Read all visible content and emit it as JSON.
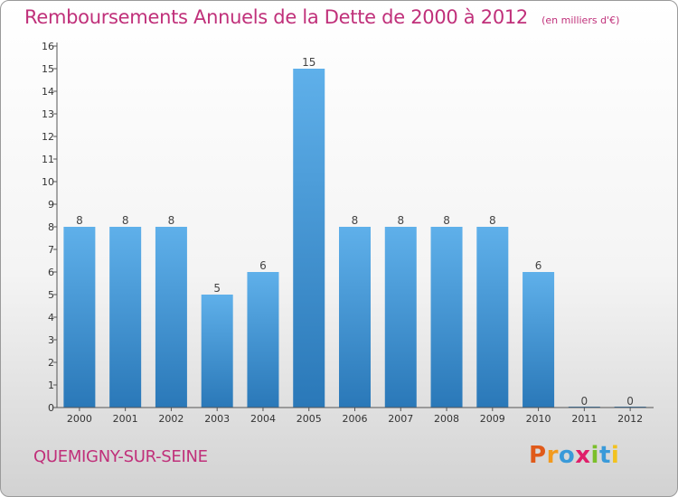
{
  "header": {
    "title": "Remboursements Annuels de la Dette de 2000 à 2012",
    "subtitle": "(en milliers d'€)"
  },
  "footer": {
    "commune": "QUEMIGNY-SUR-SEINE",
    "logo": "Proxiti",
    "logo_colors": [
      "#e05a1a",
      "#f29a1e",
      "#3a9ad9",
      "#e01f6a",
      "#7bbf2a",
      "#3a9ad9",
      "#f2c21e"
    ]
  },
  "chart_data": {
    "type": "bar",
    "categories": [
      "2000",
      "2001",
      "2002",
      "2003",
      "2004",
      "2005",
      "2006",
      "2007",
      "2008",
      "2009",
      "2010",
      "2011",
      "2012"
    ],
    "values": [
      8,
      8,
      8,
      5,
      6,
      15,
      8,
      8,
      8,
      8,
      6,
      0,
      0
    ],
    "data_labels": [
      "8",
      "8",
      "8",
      "5",
      "6",
      "15",
      "8",
      "8",
      "8",
      "8",
      "6",
      "0",
      "0"
    ],
    "y_ticks": [
      "0",
      "1",
      "2",
      "3",
      "4",
      "5",
      "6",
      "7",
      "8",
      "9",
      "10",
      "11",
      "12",
      "13",
      "14",
      "15",
      "16"
    ],
    "ylim": [
      0,
      16
    ],
    "grid": false,
    "bar_color_top": "#5fb0ea",
    "bar_color_bottom": "#2a78b8"
  }
}
